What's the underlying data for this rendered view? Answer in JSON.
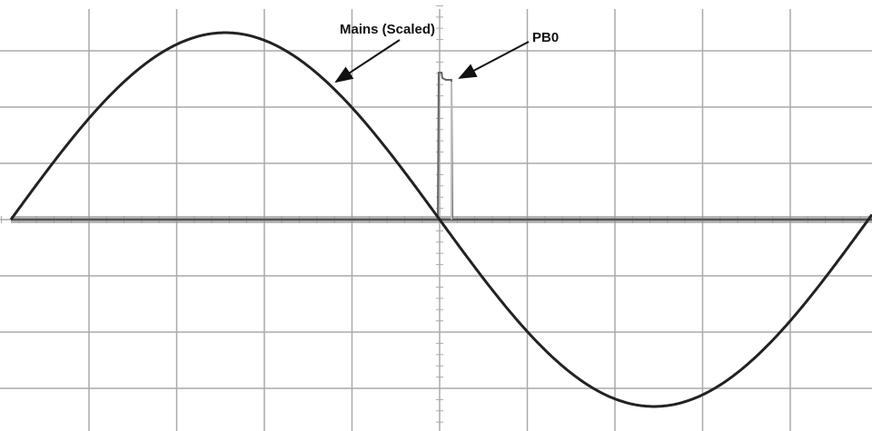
{
  "annotations": [
    "Mains (Scaled)",
    "PB0"
  ]
}
